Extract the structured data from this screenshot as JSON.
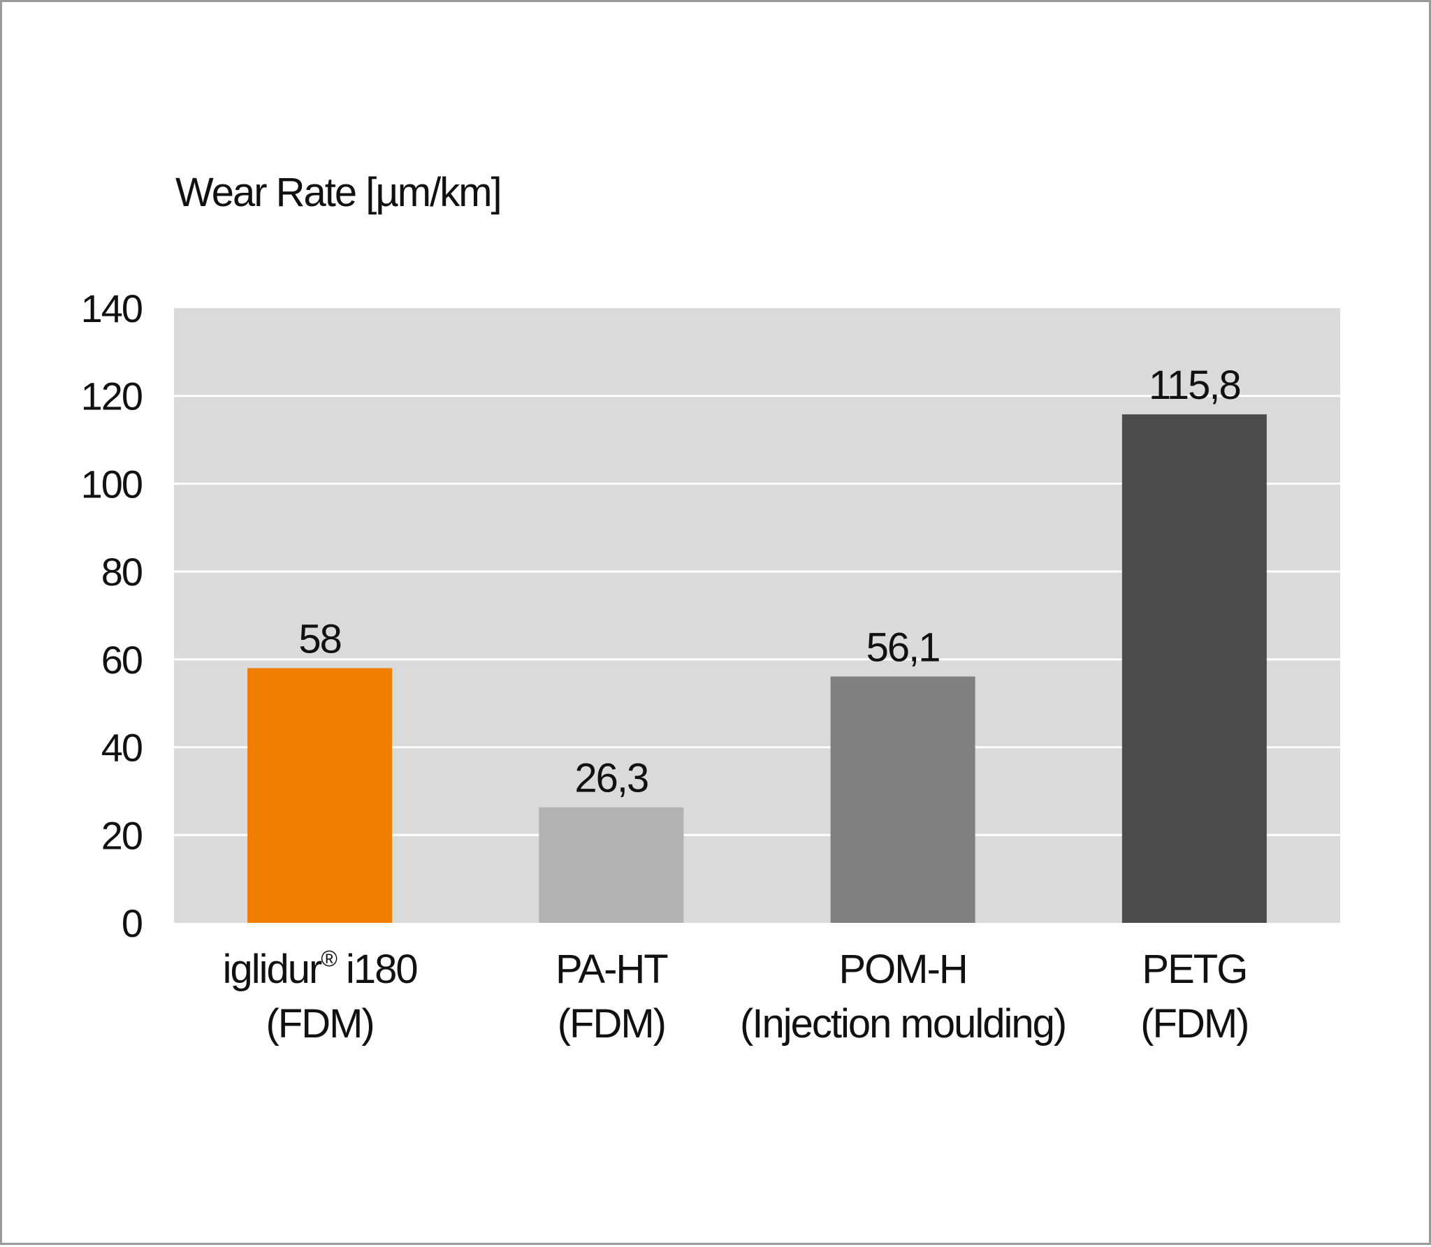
{
  "chart_data": {
    "type": "bar",
    "ylabel": "Wear Rate [µm/km]",
    "ylim": [
      0,
      140
    ],
    "yticks": [
      0,
      20,
      40,
      60,
      80,
      100,
      120,
      140
    ],
    "ytick_labels": [
      "0",
      "20",
      "40",
      "60",
      "80",
      "100",
      "120",
      "140"
    ],
    "grid": true,
    "categories": [
      {
        "line1": "iglidur",
        "mark": "®",
        "line1_suffix": " i180",
        "line2": "(FDM)"
      },
      {
        "line1": "PA-HT",
        "mark": "",
        "line1_suffix": "",
        "line2": "(FDM)"
      },
      {
        "line1": "POM-H",
        "mark": "",
        "line1_suffix": "",
        "line2": "(Injection moulding)"
      },
      {
        "line1": "PETG",
        "mark": "",
        "line1_suffix": "",
        "line2": "(FDM)"
      }
    ],
    "values": [
      58,
      26.3,
      56.1,
      115.8
    ],
    "value_labels": [
      "58",
      "26,3",
      "56,1",
      "115,8"
    ],
    "colors": [
      "#ef7d00",
      "#b2b2b2",
      "#808080",
      "#4c4c4c"
    ],
    "plot_background": "#dadada",
    "grid_color": "#ffffff"
  }
}
